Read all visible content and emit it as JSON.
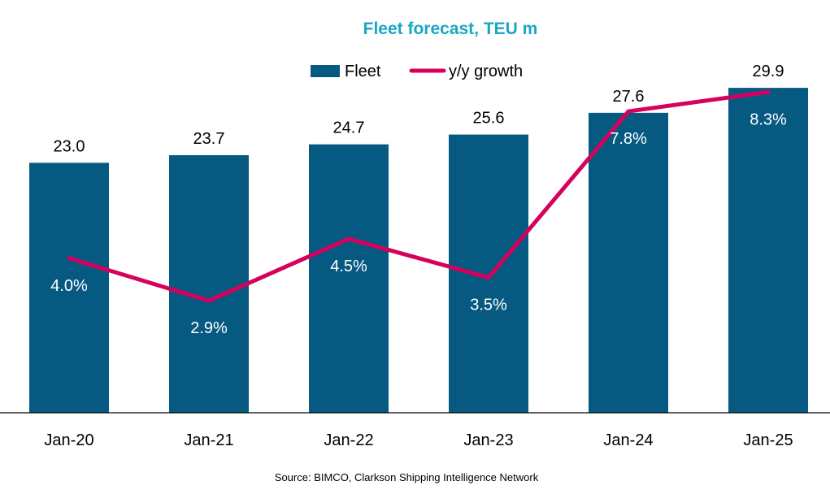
{
  "chart_data": {
    "type": "bar",
    "title": "Fleet forecast, TEU m",
    "categories": [
      "Jan-20",
      "Jan-21",
      "Jan-22",
      "Jan-23",
      "Jan-24",
      "Jan-25"
    ],
    "series": [
      {
        "name": "Fleet",
        "type": "bar",
        "values": [
          23.0,
          23.7,
          24.7,
          25.6,
          27.6,
          29.9
        ],
        "labels": [
          "23.0",
          "23.7",
          "24.7",
          "25.6",
          "27.6",
          "29.9"
        ]
      },
      {
        "name": "y/y growth",
        "type": "line",
        "axis": "secondary",
        "values": [
          4.0,
          2.9,
          4.5,
          3.5,
          7.8,
          8.3
        ],
        "labels": [
          "4.0%",
          "2.9%",
          "4.5%",
          "3.5%",
          "7.8%",
          "8.3%"
        ]
      }
    ],
    "ylim": [
      0,
      32
    ],
    "y2lim": [
      0,
      9
    ],
    "legend": "top-center",
    "grid": false,
    "source": "Source: BIMCO, Clarkson Shipping Intelligence Network",
    "colors": {
      "bar": "#065A82",
      "line": "#D6005D",
      "title": "#1AA7C4"
    }
  }
}
